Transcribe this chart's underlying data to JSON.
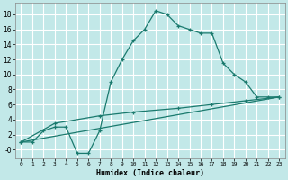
{
  "xlabel": "Humidex (Indice chaleur)",
  "bg_color": "#c2e8e8",
  "grid_color": "#ffffff",
  "line_color": "#1a7a6e",
  "xlim": [
    -0.5,
    23.5
  ],
  "ylim": [
    -1.2,
    19.5
  ],
  "xticks": [
    0,
    1,
    2,
    3,
    4,
    5,
    6,
    7,
    8,
    9,
    10,
    11,
    12,
    13,
    14,
    15,
    16,
    17,
    18,
    19,
    20,
    21,
    22,
    23
  ],
  "yticks": [
    0,
    2,
    4,
    6,
    8,
    10,
    12,
    14,
    16,
    18
  ],
  "ytick_labels": [
    "-0",
    "2",
    "4",
    "6",
    "8",
    "10",
    "12",
    "14",
    "16",
    "18"
  ],
  "line1_x": [
    0,
    1,
    2,
    3,
    4,
    5,
    6,
    7,
    8,
    9,
    10,
    11,
    12,
    13,
    14,
    15,
    16,
    17,
    18,
    19,
    20,
    21,
    22,
    23
  ],
  "line1_y": [
    1,
    1,
    2.5,
    3,
    3,
    -0.5,
    -0.5,
    2.5,
    9,
    12,
    14.5,
    16,
    18.5,
    18,
    16.5,
    16,
    15.5,
    15.5,
    11.5,
    10,
    9,
    7,
    7,
    7
  ],
  "line2_x": [
    0,
    23
  ],
  "line2_y": [
    1,
    7
  ],
  "line3_x": [
    0,
    3,
    7,
    10,
    14,
    17,
    20,
    23
  ],
  "line3_y": [
    1,
    3.5,
    4.5,
    5,
    5.5,
    6,
    6.5,
    7
  ],
  "marker": "+"
}
